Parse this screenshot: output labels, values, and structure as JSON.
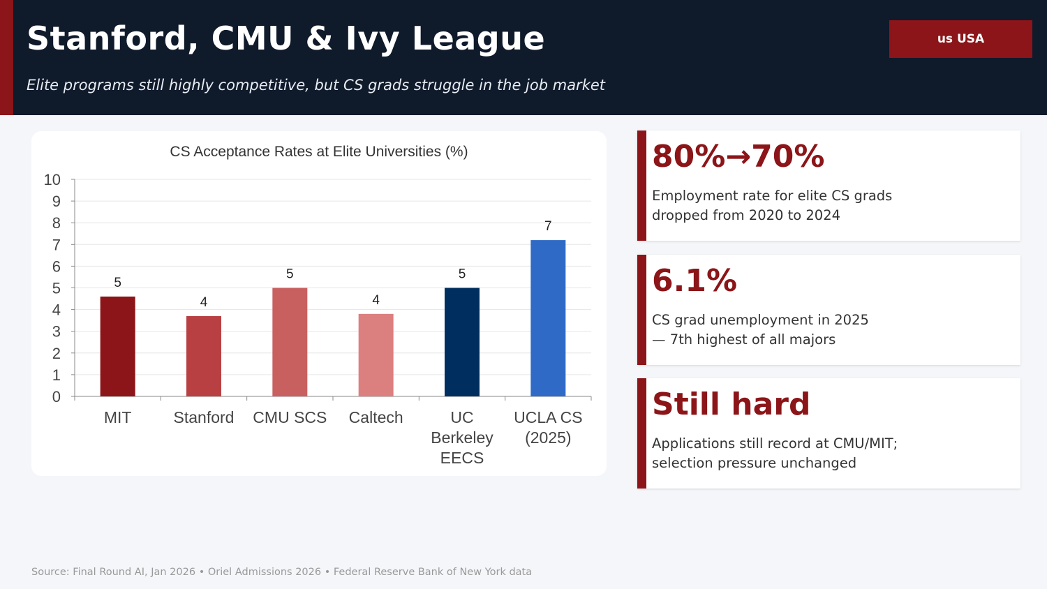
{
  "header": {
    "title": "Stanford, CMU & Ivy League",
    "subtitle": "Elite programs still highly competitive, but CS grads struggle in the job market",
    "badge": "us USA"
  },
  "colors": {
    "header_bg": "#0f1a2b",
    "accent": "#8b1518"
  },
  "chart_data": {
    "type": "bar",
    "title": "CS Acceptance Rates at Elite Universities (%)",
    "categories": [
      [
        "MIT"
      ],
      [
        "Stanford"
      ],
      [
        "CMU SCS"
      ],
      [
        "Caltech"
      ],
      [
        "UC",
        "Berkeley",
        "EECS"
      ],
      [
        "UCLA CS",
        "(2025)"
      ]
    ],
    "values": [
      4.6,
      3.7,
      5.0,
      3.8,
      5.0,
      7.2
    ],
    "data_labels": [
      "5",
      "4",
      "5",
      "4",
      "5",
      "7"
    ],
    "colors": [
      "#8b1518",
      "#b84043",
      "#c96060",
      "#db7f7f",
      "#002f5f",
      "#2f6ac7"
    ],
    "ylim": [
      0,
      10
    ],
    "yticks": [
      "0",
      "1",
      "2",
      "3",
      "4",
      "5",
      "6",
      "7",
      "8",
      "9",
      "10"
    ],
    "grid": true,
    "xlabel": "",
    "ylabel": ""
  },
  "stats": [
    {
      "value": "80%→70%",
      "desc_lines": [
        "Employment rate for elite CS grads",
        "dropped from 2020 to 2024"
      ]
    },
    {
      "value": "6.1%",
      "desc_lines": [
        "CS grad unemployment in 2025",
        "— 7th highest of all majors"
      ]
    },
    {
      "value": "Still hard",
      "desc_lines": [
        "Applications still record at CMU/MIT;",
        "selection pressure unchanged"
      ]
    }
  ],
  "source": "Source: Final Round AI, Jan 2026 • Oriel Admissions 2026 • Federal Reserve Bank of New York data"
}
